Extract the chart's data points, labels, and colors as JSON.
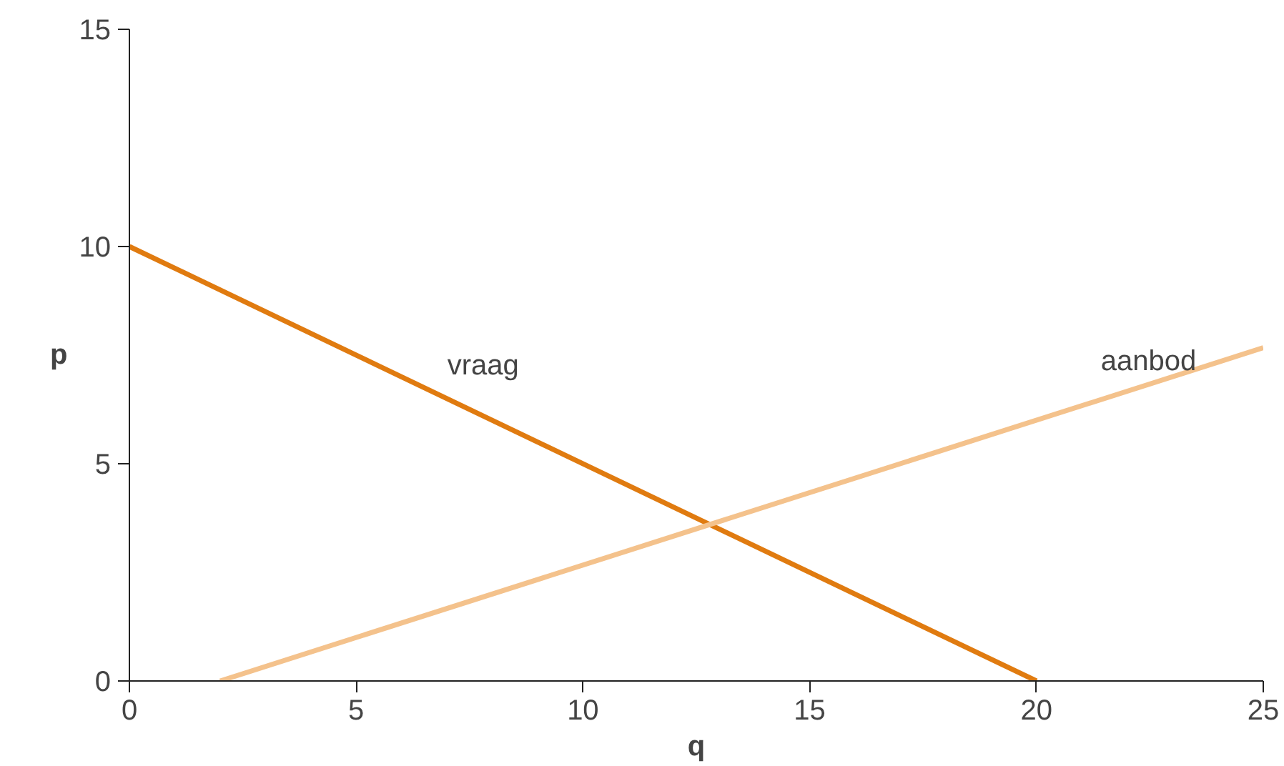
{
  "chart_data": {
    "type": "line",
    "xlabel": "q",
    "ylabel": "p",
    "xlim": [
      0,
      25
    ],
    "ylim": [
      0,
      15
    ],
    "xticks": [
      0,
      5,
      10,
      15,
      20,
      25
    ],
    "yticks": [
      0,
      5,
      10,
      15
    ],
    "grid": false,
    "legend": false,
    "marker": "none",
    "line_style": "solid",
    "series": [
      {
        "name": "vraag",
        "color": "#e07b10",
        "x": [
          0,
          20
        ],
        "values": [
          10,
          0
        ]
      },
      {
        "name": "aanbod",
        "color": "#f4c28c",
        "x": [
          2,
          25
        ],
        "values": [
          0,
          7.67
        ]
      }
    ]
  }
}
